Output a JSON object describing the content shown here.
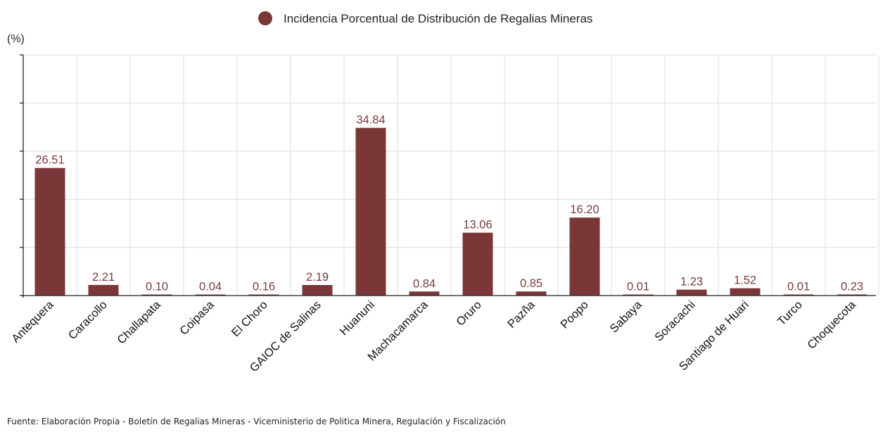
{
  "chart_data": {
    "type": "bar",
    "categories": [
      "Antequera",
      "Caracollo",
      "Challapata",
      "Coipasa",
      "El Choro",
      "GAIOC de Salinas",
      "Huanuni",
      "Machacamarca",
      "Oruro",
      "Pazña",
      "Poopo",
      "Sabaya",
      "Soracachi",
      "Santiago de Huari",
      "Turco",
      "Choquecota"
    ],
    "series": [
      {
        "name": "Incidencia Porcentual de Distribución de Regalias Mineras",
        "values": [
          26.51,
          2.21,
          0.1,
          0.04,
          0.16,
          2.19,
          34.84,
          0.84,
          13.06,
          0.85,
          16.2,
          0.01,
          1.23,
          1.52,
          0.01,
          0.23
        ],
        "labels": [
          "26.51",
          "2.21",
          "0.10",
          "0.04",
          "0.16",
          "2.19",
          "34.84",
          "0.84",
          "13.06",
          "0.85",
          "16.20",
          "0.01",
          "1.23",
          "1.52",
          "0.01",
          "0.23"
        ],
        "color": "#7b3738"
      }
    ],
    "ylabel": "(%)",
    "ylim": [
      0,
      50
    ],
    "yticks": [
      0,
      10,
      20,
      30,
      40,
      50
    ],
    "grid": true,
    "legend_position": "top-center"
  },
  "source_text": "Fuente: Elaboración Propia - Boletín de Regalias Mineras - Viceministerio de Politica Minera, Regulación y Fiscalización"
}
